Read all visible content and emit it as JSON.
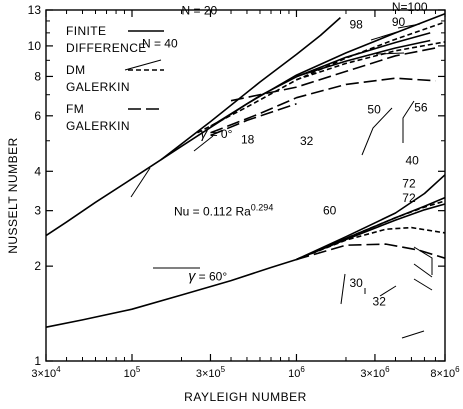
{
  "chart_data": {
    "type": "line",
    "title": "",
    "xlabel": "RAYLEIGH NUMBER",
    "ylabel": "NUSSELT NUMBER",
    "x_scale": "log",
    "y_scale": "log",
    "xlim": [
      30000,
      8000000
    ],
    "ylim": [
      1,
      13
    ],
    "grid": false,
    "x_ticks": [
      {
        "value": 30000,
        "label": "3×10⁴"
      },
      {
        "value": 100000,
        "label": "10⁵"
      },
      {
        "value": 300000,
        "label": "3×10⁵"
      },
      {
        "value": 1000000,
        "label": "10⁶"
      },
      {
        "value": 3000000,
        "label": "3×10⁶"
      },
      {
        "value": 8000000,
        "label": "8×10⁶"
      }
    ],
    "y_ticks": [
      {
        "value": 1,
        "label": "1"
      },
      {
        "value": 2,
        "label": "2"
      },
      {
        "value": 3,
        "label": "3"
      },
      {
        "value": 4,
        "label": "4"
      },
      {
        "value": 6,
        "label": "6"
      },
      {
        "value": 8,
        "label": "8"
      },
      {
        "value": 10,
        "label": "10"
      },
      {
        "value": 13,
        "label": "13"
      }
    ],
    "legend": {
      "placement": "top-left",
      "entries": [
        {
          "label_lines": [
            "FINITE",
            "DIFFERENCE"
          ],
          "style": "solid"
        },
        {
          "label_lines": [
            "DM",
            "GALERKIN"
          ],
          "style": "short-dash"
        },
        {
          "label_lines": [
            "FM",
            "GALERKIN"
          ],
          "style": "long-dash"
        }
      ]
    },
    "series": [
      {
        "method": "finite-difference",
        "style": "solid",
        "x": [
          30000,
          40000,
          60000,
          100000,
          200000,
          500000,
          1000000,
          2000000,
          4000000,
          8000000
        ],
        "y": [
          2.5,
          2.76,
          3.19,
          3.79,
          4.8,
          6.55,
          8.08,
          9.5,
          11.0,
          12.65
        ]
      },
      {
        "method": "finite-difference",
        "style": "solid",
        "x": [
          150000,
          300000,
          600000,
          1000000,
          1400000,
          1850000
        ],
        "y": [
          4.35,
          5.75,
          7.68,
          9.4,
          10.8,
          12.3
        ]
      },
      {
        "method": "finite-difference",
        "style": "solid",
        "x": [
          300000,
          600000,
          1000000,
          2000000,
          4000000,
          6500000
        ],
        "y": [
          5.55,
          6.95,
          7.98,
          9.2,
          10.25,
          11.0
        ]
      },
      {
        "method": "finite-difference",
        "style": "solid",
        "x": [
          1000000,
          2000000,
          4000000,
          6500000
        ],
        "y": [
          8.0,
          8.95,
          9.85,
          10.4
        ]
      },
      {
        "method": "dm-galerkin",
        "style": "short-dash",
        "x": [
          250000,
          500000,
          1000000,
          2000000,
          4000000,
          8000000
        ],
        "y": [
          5.3,
          6.4,
          7.8,
          9.15,
          10.5,
          11.9
        ]
      },
      {
        "method": "dm-galerkin",
        "style": "short-dash",
        "x": [
          1000000,
          2000000,
          4000000,
          8000000
        ],
        "y": [
          7.82,
          8.8,
          9.65,
          10.3
        ]
      },
      {
        "method": "fm-galerkin",
        "style": "long-dash",
        "x": [
          400000,
          1000000,
          2000000,
          4000000,
          7000000
        ],
        "y": [
          6.7,
          7.4,
          8.3,
          9.3,
          9.85
        ]
      },
      {
        "method": "fm-galerkin",
        "style": "long-dash",
        "x": [
          300000,
          600000,
          1000000,
          2000000,
          4000000,
          7000000
        ],
        "y": [
          5.3,
          6.1,
          6.85,
          7.55,
          7.9,
          7.75
        ]
      },
      {
        "method": "fm-galerkin",
        "style": "long-dash",
        "x": [
          300000,
          500000,
          800000,
          1000000
        ],
        "y": [
          5.2,
          5.8,
          6.3,
          6.55
        ]
      },
      {
        "method": "finite-difference",
        "style": "solid",
        "x": [
          30000,
          50000,
          100000,
          200000,
          400000,
          700000,
          1000000
        ],
        "y": [
          1.28,
          1.35,
          1.46,
          1.62,
          1.8,
          1.98,
          2.1
        ]
      },
      {
        "method": "finite-difference",
        "style": "solid",
        "x": [
          1000000,
          2000000,
          4000000,
          6000000,
          8000000
        ],
        "y": [
          2.1,
          2.48,
          2.95,
          3.4,
          3.9
        ]
      },
      {
        "method": "finite-difference",
        "style": "solid",
        "x": [
          1000000,
          2000000,
          4000000,
          6000000,
          8000000
        ],
        "y": [
          2.1,
          2.45,
          2.85,
          3.1,
          3.3
        ]
      },
      {
        "method": "finite-difference",
        "style": "solid",
        "x": [
          1000000,
          2000000,
          4000000,
          6000000,
          8000000
        ],
        "y": [
          2.1,
          2.43,
          2.8,
          3.02,
          3.15
        ]
      },
      {
        "method": "dm-galerkin",
        "style": "short-dash",
        "x": [
          1000000,
          2000000,
          4000000,
          6000000,
          8000000
        ],
        "y": [
          2.1,
          2.45,
          2.85,
          3.08,
          3.22
        ]
      },
      {
        "method": "dm-galerkin",
        "style": "short-dash",
        "x": [
          1000000,
          2000000,
          3500000,
          5000000,
          8000000
        ],
        "y": [
          2.1,
          2.42,
          2.62,
          2.65,
          2.55
        ]
      },
      {
        "method": "fm-galerkin",
        "style": "long-dash",
        "x": [
          1000000,
          2000000,
          3500000,
          5500000,
          8000000
        ],
        "y": [
          2.1,
          2.33,
          2.35,
          2.25,
          2.12
        ]
      }
    ],
    "annotations": [
      {
        "id": "n20",
        "text": "N = 20",
        "x": 200000,
        "y": 12.6
      },
      {
        "id": "n40",
        "text": "N = 40",
        "x": 115000,
        "y": 9.9
      },
      {
        "id": "n100",
        "text": "N=100",
        "x": 3800000,
        "y": 12.9
      },
      {
        "id": "n98",
        "text": "98",
        "x": 2100000,
        "y": 11.35
      },
      {
        "id": "n90",
        "text": "90",
        "x": 3800000,
        "y": 11.55
      },
      {
        "id": "n50",
        "text": "50",
        "x": 2700000,
        "y": 6.1
      },
      {
        "id": "n56",
        "text": "56",
        "x": 5200000,
        "y": 6.2
      },
      {
        "id": "n18",
        "text": "18",
        "x": 460000,
        "y": 4.9
      },
      {
        "id": "n32a",
        "text": "32",
        "x": 1050000,
        "y": 4.85
      },
      {
        "id": "gamma0",
        "text": "γ = 0°",
        "x": 260000,
        "y": 5.1
      },
      {
        "id": "n40b",
        "text": "40",
        "x": 4600000,
        "y": 4.2
      },
      {
        "id": "n72a",
        "text": "72",
        "x": 4400000,
        "y": 3.55
      },
      {
        "id": "n72b",
        "text": "72",
        "x": 4400000,
        "y": 3.2
      },
      {
        "id": "n60",
        "text": "60",
        "x": 1450000,
        "y": 2.92
      },
      {
        "id": "correlation",
        "text": "Nu = 0.112 Ra^0.294",
        "x": 180000,
        "y": 2.9
      },
      {
        "id": "gamma60",
        "text": "γ = 60°",
        "x": 220000,
        "y": 1.8
      },
      {
        "id": "n30",
        "text": "30",
        "x": 2100000,
        "y": 1.72
      },
      {
        "id": "n32b",
        "text": "32",
        "x": 2900000,
        "y": 1.5
      }
    ]
  }
}
